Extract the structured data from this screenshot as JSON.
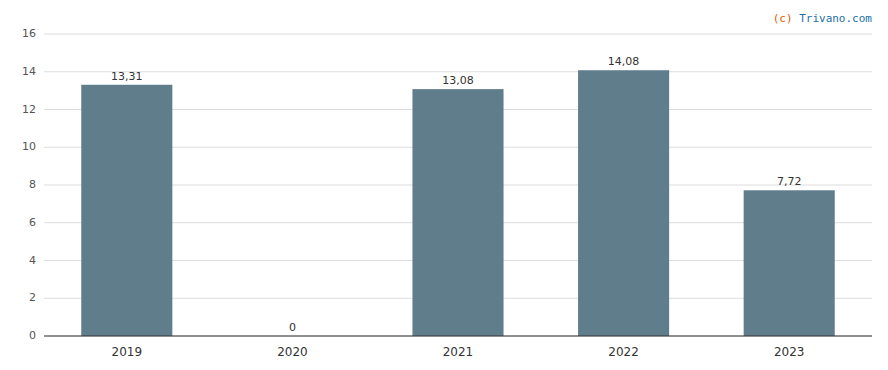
{
  "chart_data": {
    "type": "bar",
    "categories": [
      "2019",
      "2020",
      "2021",
      "2022",
      "2023"
    ],
    "values": [
      13.31,
      0,
      13.08,
      14.08,
      7.72
    ],
    "value_labels": [
      "13,31",
      "0",
      "13,08",
      "14,08",
      "7,72"
    ],
    "color": "#607d8b",
    "ylim": [
      0,
      16
    ],
    "yticks": [
      0,
      2,
      4,
      6,
      8,
      10,
      12,
      14,
      16
    ],
    "grid": true,
    "data_labels": true,
    "annotations": [
      "(c) Trivano.com"
    ]
  }
}
